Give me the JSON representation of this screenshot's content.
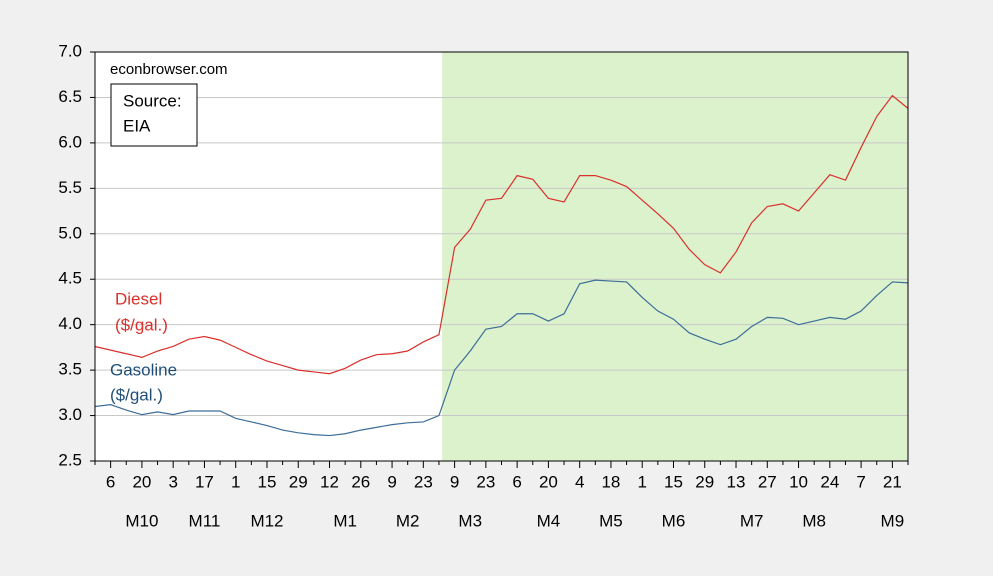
{
  "chart_data": {
    "type": "line",
    "categories": [
      null,
      "6",
      null,
      "20",
      null,
      "3",
      null,
      "17",
      null,
      "1",
      null,
      "15",
      null,
      "29",
      null,
      "12",
      null,
      "26",
      null,
      "9",
      null,
      "23",
      null,
      "9",
      null,
      "23",
      null,
      "6",
      null,
      "20",
      null,
      "4",
      null,
      "18",
      null,
      "1",
      null,
      "15",
      null,
      "29",
      null,
      "13",
      null,
      "27",
      null,
      "10",
      null,
      "24",
      null,
      "7",
      null,
      "21",
      null
    ],
    "month_row": [
      null,
      null,
      null,
      "M10",
      null,
      null,
      null,
      "M11",
      null,
      null,
      null,
      "M12",
      null,
      null,
      null,
      null,
      "M1",
      null,
      null,
      null,
      "M2",
      null,
      null,
      null,
      "M3",
      null,
      null,
      null,
      null,
      "M4",
      null,
      null,
      null,
      "M5",
      null,
      null,
      null,
      "M6",
      null,
      null,
      null,
      null,
      "M7",
      null,
      null,
      null,
      "M8",
      null,
      null,
      null,
      null,
      "M9",
      null
    ],
    "series": [
      {
        "name": "Diesel",
        "unit_label": "($/gal.)",
        "color": "#d9302c",
        "values": [
          3.76,
          3.72,
          3.68,
          3.64,
          3.71,
          3.76,
          3.84,
          3.87,
          3.83,
          3.75,
          3.67,
          3.6,
          3.55,
          3.5,
          3.48,
          3.46,
          3.52,
          3.61,
          3.67,
          3.68,
          3.71,
          3.81,
          3.89,
          4.85,
          5.05,
          5.37,
          5.39,
          5.64,
          5.6,
          5.39,
          5.35,
          5.64,
          5.64,
          5.59,
          5.52,
          5.37,
          5.22,
          5.06,
          4.83,
          4.66,
          4.57,
          4.8,
          5.12,
          5.3,
          5.33,
          5.25,
          5.45,
          5.65,
          5.59,
          5.95,
          6.29,
          6.52,
          6.38
        ]
      },
      {
        "name": "Gasoline",
        "unit_label": "($/gal.)",
        "color": "#3d6d99",
        "values": [
          3.1,
          3.12,
          3.06,
          3.01,
          3.04,
          3.01,
          3.05,
          3.05,
          3.05,
          2.97,
          2.93,
          2.89,
          2.84,
          2.81,
          2.79,
          2.78,
          2.8,
          2.84,
          2.87,
          2.9,
          2.92,
          2.93,
          3.0,
          3.5,
          3.71,
          3.95,
          3.98,
          4.12,
          4.12,
          4.04,
          4.12,
          4.45,
          4.49,
          4.48,
          4.47,
          4.3,
          4.15,
          4.06,
          3.91,
          3.84,
          3.78,
          3.84,
          3.98,
          4.08,
          4.07,
          4.0,
          4.04,
          4.08,
          4.06,
          4.15,
          4.32,
          4.47,
          4.46
        ]
      }
    ],
    "ylim": [
      2.5,
      7.0
    ],
    "yticks": [
      2.5,
      {
        "value": 3.0,
        "label": "3.0"
      },
      3.5,
      {
        "value": 4.0,
        "label": "4.0"
      },
      4.5,
      {
        "value": 5.0,
        "label": "5.0"
      },
      5.5,
      {
        "value": 6.0,
        "label": "6.0"
      },
      6.5,
      {
        "value": 7.0,
        "label": "7.0"
      }
    ],
    "grid": true,
    "shade": {
      "from": 22.2,
      "to": 52,
      "color": "#dcf2cc"
    },
    "annotations": {
      "site": "econbrowser.com",
      "source": [
        "Source:",
        "EIA"
      ]
    }
  }
}
